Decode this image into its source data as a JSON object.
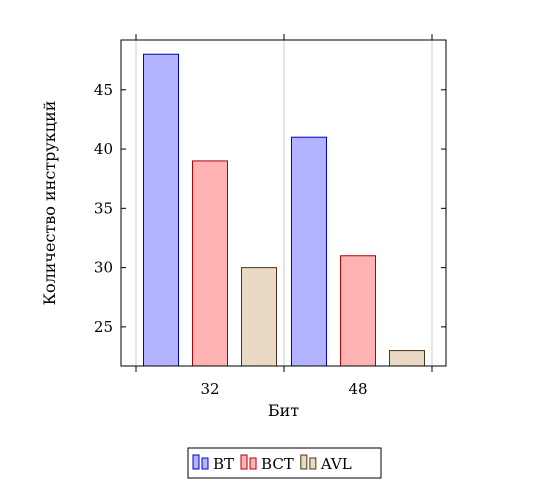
{
  "chart_data": {
    "type": "bar",
    "categories": [
      "32",
      "48"
    ],
    "series": [
      {
        "name": "BT",
        "values": [
          48,
          41
        ],
        "fill": "#b3b3ff",
        "stroke": "#0000cc"
      },
      {
        "name": "BCT",
        "values": [
          39,
          31
        ],
        "fill": "#ffb3b3",
        "stroke": "#b30000"
      },
      {
        "name": "AVL",
        "values": [
          30,
          23
        ],
        "fill": "#ead9c4",
        "stroke": "#4d3319"
      }
    ],
    "xlabel": "Бит",
    "ylabel": "Количество инструкций",
    "yticks": [
      25,
      30,
      35,
      40,
      45
    ],
    "ylim": [
      21.7,
      49.2
    ],
    "grid": "vertical-major",
    "legend": "bottom-center"
  }
}
